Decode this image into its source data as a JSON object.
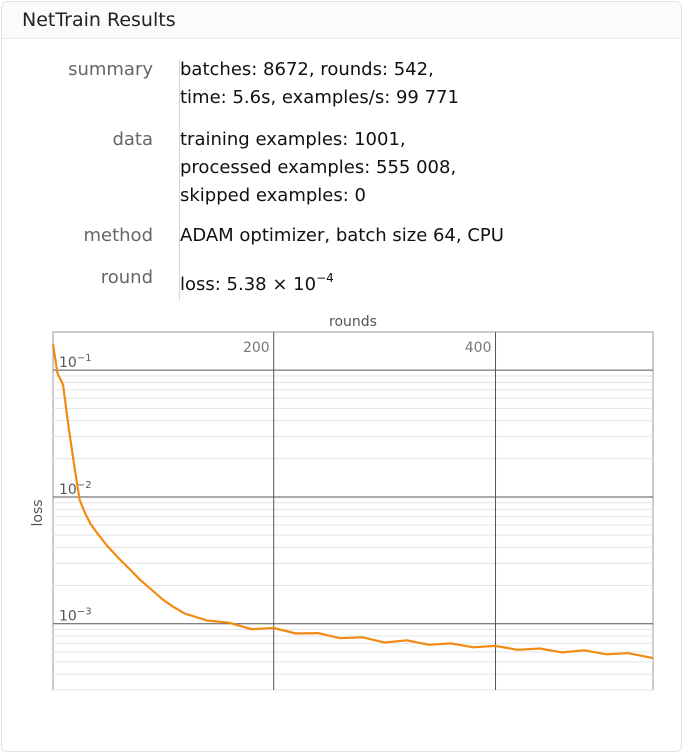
{
  "window": {
    "title": "NetTrain Results"
  },
  "summary": {
    "rows": [
      {
        "label": "summary",
        "lines": [
          "batches: 8672, rounds: 542,",
          "time: 5.6s, examples/s: 99 771"
        ]
      },
      {
        "label": "data",
        "lines": [
          "training examples: 1001,",
          "processed examples: 555 008,",
          "skipped examples: 0"
        ]
      },
      {
        "label": "method",
        "lines": [
          "ADAM optimizer, batch size 64, CPU"
        ]
      },
      {
        "label": "round",
        "lines": [
          "loss: 5.38 × 10"
        ],
        "exponent": "−4"
      }
    ]
  },
  "chart_data": {
    "type": "line",
    "title": "",
    "xlabel": "rounds",
    "ylabel": "loss",
    "x_ticks": [
      200,
      400
    ],
    "x_tick_labels": [
      "200",
      "400"
    ],
    "y_scale": "log",
    "y_ticks": [
      0.1,
      0.01,
      0.001
    ],
    "y_tick_labels": [
      {
        "base": "10",
        "exp": "−1"
      },
      {
        "base": "10",
        "exp": "−2"
      },
      {
        "base": "10",
        "exp": "−3"
      }
    ],
    "xlim": [
      1,
      542
    ],
    "ylim": [
      0.0003,
      0.2
    ],
    "grid": true,
    "color": "#f28a12",
    "series": [
      {
        "x": [
          1,
          5,
          10,
          15,
          20,
          25,
          30,
          35,
          40,
          50,
          60,
          70,
          80,
          90,
          100,
          110,
          120,
          140,
          160,
          180,
          200,
          220,
          240,
          260,
          280,
          300,
          320,
          340,
          360,
          380,
          400,
          420,
          440,
          460,
          480,
          500,
          520,
          542
        ],
        "y": [
          0.16,
          0.095,
          0.077,
          0.036,
          0.018,
          0.0095,
          0.0074,
          0.0061,
          0.0053,
          0.0041,
          0.0033,
          0.0027,
          0.0022,
          0.00185,
          0.00155,
          0.00135,
          0.0012,
          0.00106,
          0.00099,
          0.00093,
          0.0009,
          0.00086,
          0.00082,
          0.00079,
          0.00076,
          0.00073,
          0.00072,
          0.0007,
          0.00068,
          0.00067,
          0.00065,
          0.00064,
          0.00062,
          0.00061,
          0.0006,
          0.00059,
          0.00057,
          0.00055
        ]
      }
    ]
  }
}
